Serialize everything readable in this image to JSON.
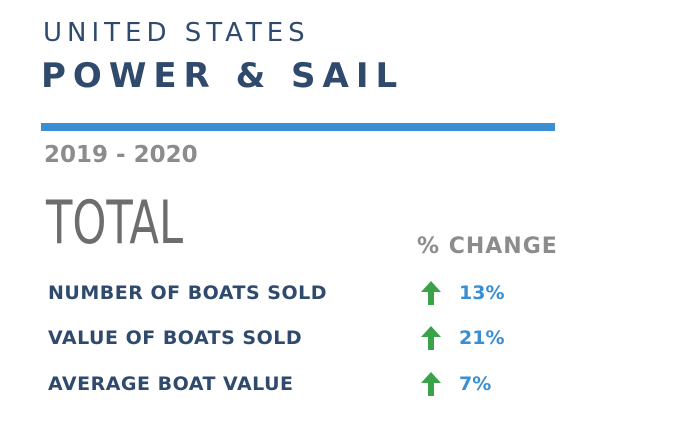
{
  "header": {
    "eyebrow": "UNITED STATES",
    "title": "POWER & SAIL",
    "period": "2019 - 2020"
  },
  "section": {
    "total_label": "TOTAL",
    "change_header": "% CHANGE"
  },
  "colors": {
    "navy": "#2f4a6d",
    "accent_blue": "#3a8fd2",
    "gray": "#8c8c8c",
    "up_green": "#3aa34a"
  },
  "metrics": [
    {
      "label": "NUMBER OF BOATS SOLD",
      "direction_icon": "up-arrow-icon",
      "change": "13%"
    },
    {
      "label": "VALUE OF BOATS SOLD",
      "direction_icon": "up-arrow-icon",
      "change": "21%"
    },
    {
      "label": "AVERAGE BOAT VALUE",
      "direction_icon": "up-arrow-icon",
      "change": "7%"
    }
  ]
}
